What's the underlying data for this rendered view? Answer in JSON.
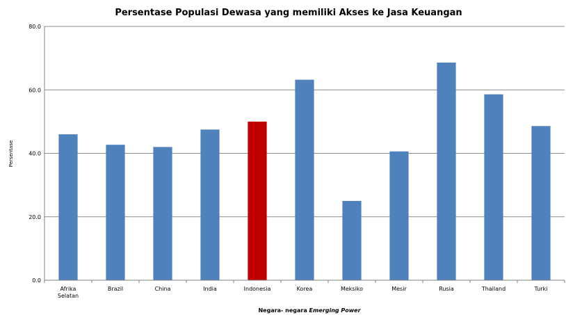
{
  "chart_data": {
    "type": "bar",
    "title": "Persentase Populasi Dewasa yang memiliki Akses ke Jasa Keuangan",
    "ylabel": "Persentase",
    "xlabel_prefix": "Negara- negara ",
    "xlabel_emphasis": "Emerging Power",
    "ylim": [
      0,
      80
    ],
    "yticks": [
      "0.0",
      "20.0",
      "40.0",
      "60.0",
      "80.0"
    ],
    "grid": true,
    "categories": [
      [
        "Afrika",
        "Selatan"
      ],
      [
        "Brazil"
      ],
      [
        "China"
      ],
      [
        "India"
      ],
      [
        "Indonesia"
      ],
      [
        "Korea"
      ],
      [
        "Meksiko"
      ],
      [
        "Mesir"
      ],
      [
        "Rusia"
      ],
      [
        "Thailand"
      ],
      [
        "Turki"
      ]
    ],
    "values": [
      46,
      42.7,
      42,
      47.5,
      50,
      63.2,
      25,
      40.6,
      68.6,
      58.6,
      48.6
    ],
    "highlight_index": 4,
    "colors": {
      "bar": "#4F81BD",
      "highlight": "#C00000",
      "grid": "#8c8c8c",
      "axis": "#808080"
    }
  }
}
